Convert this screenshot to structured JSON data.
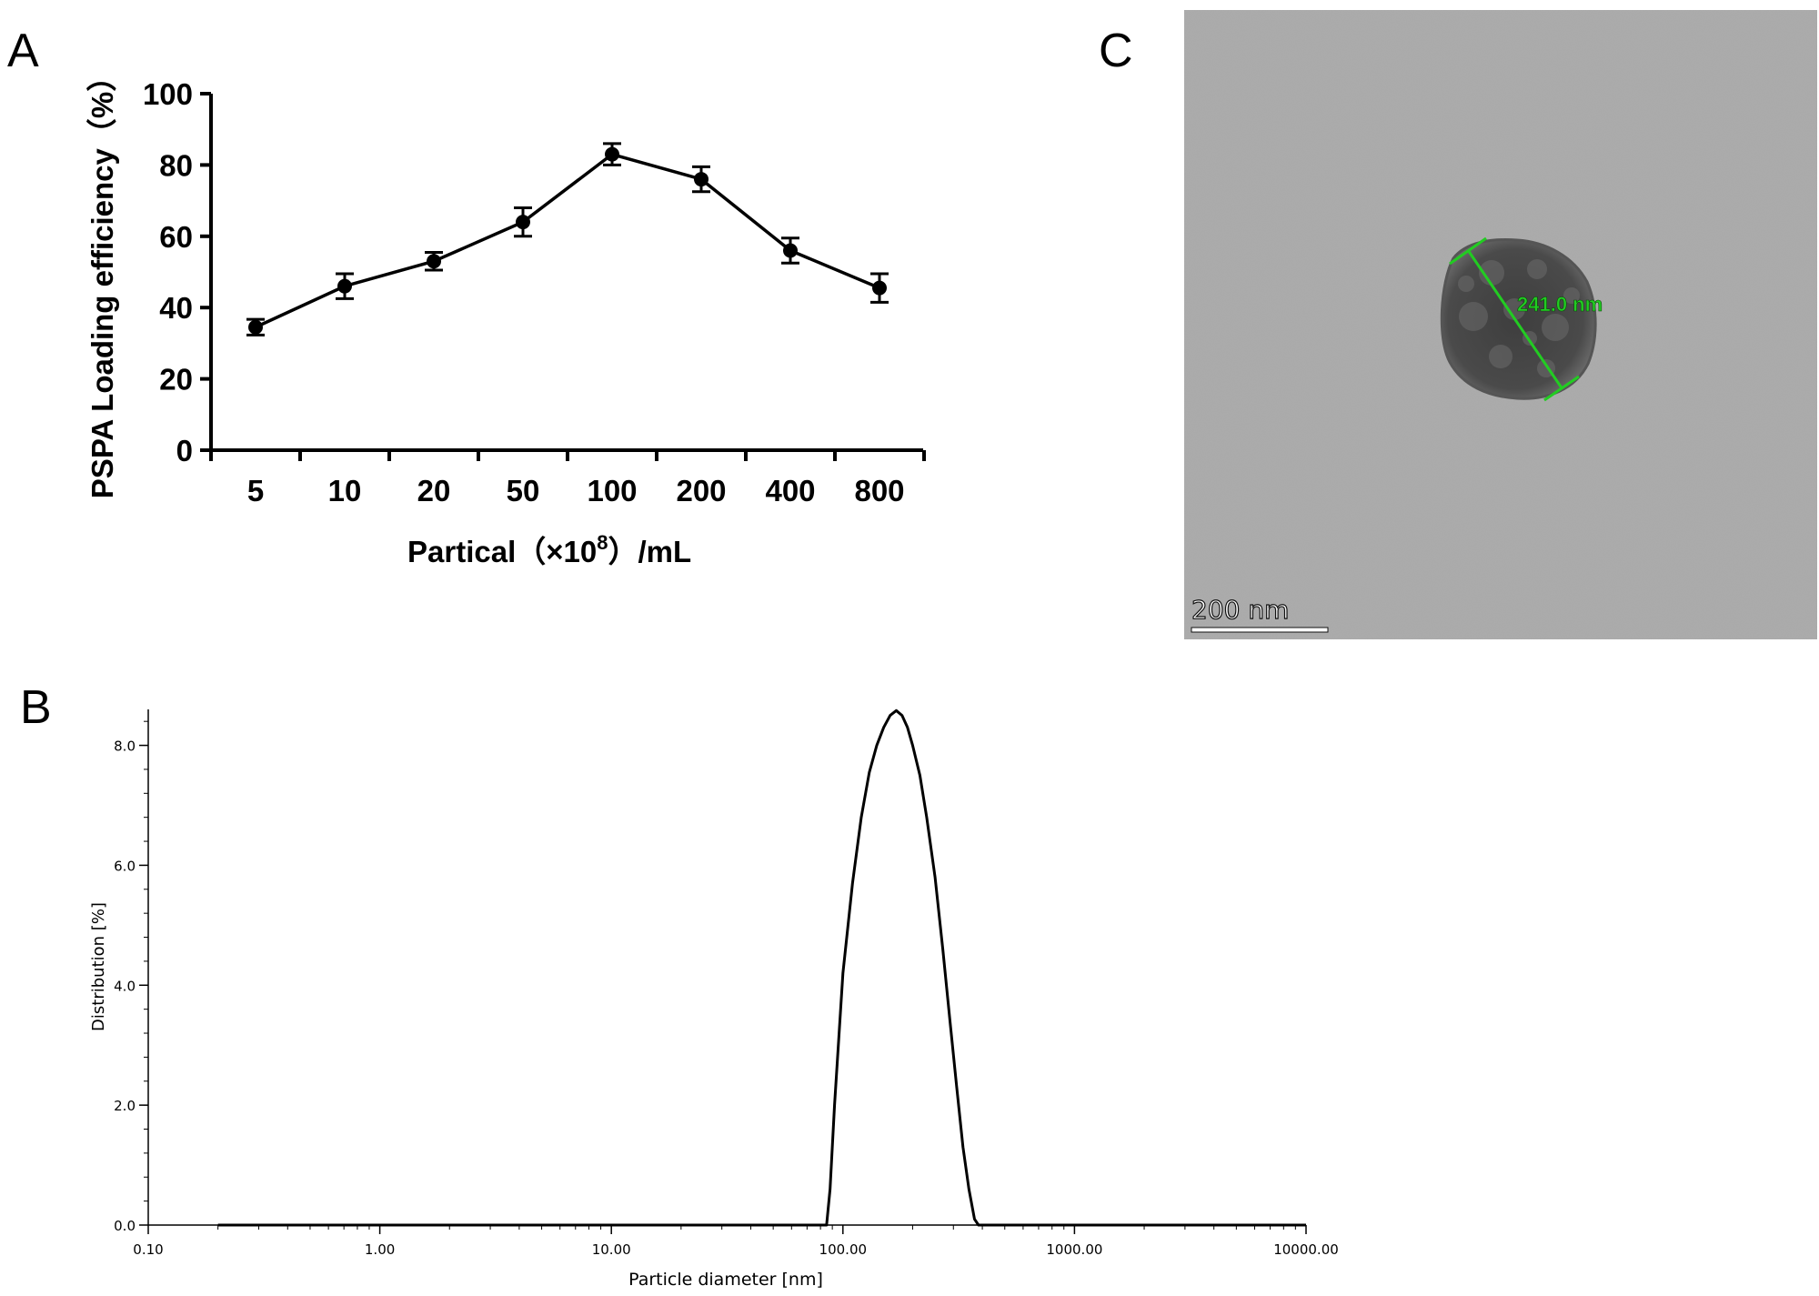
{
  "panels": {
    "a_label": "A",
    "b_label": "B",
    "c_label": "C"
  },
  "micrograph": {
    "measurement_label": "241.0 nm",
    "scale_bar_label": "200 nm",
    "background_color": "#a9a9a9",
    "measure_color": "#22cc22"
  },
  "chart_data": [
    {
      "panel": "A",
      "type": "line",
      "categories": [
        "5",
        "10",
        "20",
        "50",
        "100",
        "200",
        "400",
        "800"
      ],
      "values": [
        34.5,
        46,
        53,
        64,
        83,
        76,
        56,
        45.5
      ],
      "errors": [
        2.2,
        3.5,
        2.5,
        4,
        3,
        3.5,
        3.5,
        4
      ],
      "xlabel_main": "Partical（×10",
      "xlabel_sup": "8",
      "xlabel_tail": "）/mL",
      "ylabel": "PSPA Loading efficiency（%）",
      "ylim": [
        0,
        100
      ],
      "yticks": [
        0,
        20,
        40,
        60,
        80,
        100
      ],
      "yticklabels": [
        "0",
        "20",
        "40",
        "60",
        "80",
        "100"
      ],
      "markers": "filled-circle",
      "color": "#000000"
    },
    {
      "panel": "B",
      "type": "line",
      "x_scale": "log",
      "xlim": [
        0.1,
        10000
      ],
      "xticks": [
        0.1,
        1,
        10,
        100,
        1000,
        10000
      ],
      "xticklabels": [
        "0.10",
        "1.00",
        "10.00",
        "100.00",
        "1000.00",
        "10000.00"
      ],
      "ylim": [
        0,
        8.6
      ],
      "yticks": [
        0,
        2,
        4,
        6,
        8
      ],
      "yticklabels": [
        "0.0",
        "2.0",
        "4.0",
        "6.0",
        "8.0"
      ],
      "xlabel": "Particle diameter [nm]",
      "ylabel": "Distribution [%]",
      "x": [
        0.2,
        80,
        85,
        88,
        92,
        100,
        110,
        120,
        130,
        140,
        150,
        160,
        170,
        180,
        190,
        200,
        215,
        230,
        250,
        270,
        290,
        310,
        330,
        350,
        370,
        385,
        10000
      ],
      "y": [
        0,
        0,
        0,
        0.6,
        2.0,
        4.2,
        5.7,
        6.8,
        7.55,
        8.0,
        8.3,
        8.5,
        8.58,
        8.5,
        8.3,
        8.0,
        7.5,
        6.8,
        5.8,
        4.6,
        3.4,
        2.3,
        1.3,
        0.6,
        0.1,
        0,
        0
      ],
      "color": "#000000"
    }
  ]
}
